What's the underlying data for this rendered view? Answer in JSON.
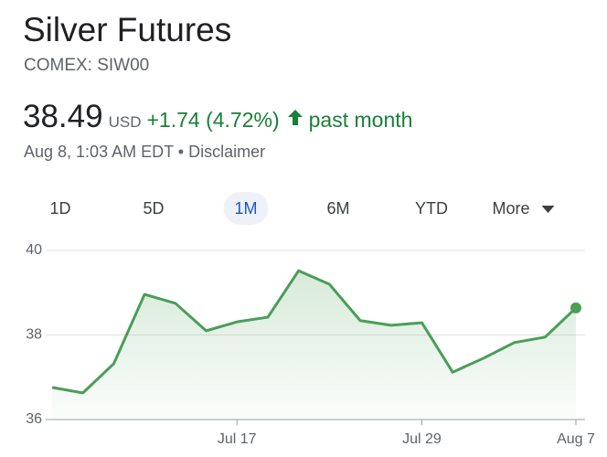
{
  "header": {
    "title": "Silver Futures",
    "subtitle": "COMEX: SIW00"
  },
  "price": {
    "value": "38.49",
    "currency": "USD",
    "change": "+1.74 (4.72%)",
    "period": "past month",
    "timestamp": "Aug 8, 1:03 AM EDT",
    "separator": "•",
    "disclaimer": "Disclaimer"
  },
  "tabs": {
    "items": [
      "1D",
      "5D",
      "1M",
      "6M",
      "YTD",
      "More"
    ],
    "selected": "1M"
  },
  "chart_data": {
    "type": "line",
    "categories": [
      null,
      null,
      null,
      null,
      null,
      null,
      "Jul 17",
      null,
      null,
      null,
      null,
      null,
      "Jul 29",
      null,
      null,
      null,
      null,
      "Aug 7"
    ],
    "series": [
      {
        "name": "Silver Futures",
        "color": "#4a9e56",
        "values": [
          36.76,
          36.63,
          37.32,
          38.96,
          38.75,
          38.1,
          38.31,
          38.42,
          39.52,
          39.2,
          38.34,
          38.23,
          38.29,
          37.12,
          37.45,
          37.82,
          37.95,
          38.64
        ]
      }
    ],
    "ylim": [
      36,
      40
    ],
    "yticks": [
      36,
      38,
      40
    ],
    "grid": true
  }
}
